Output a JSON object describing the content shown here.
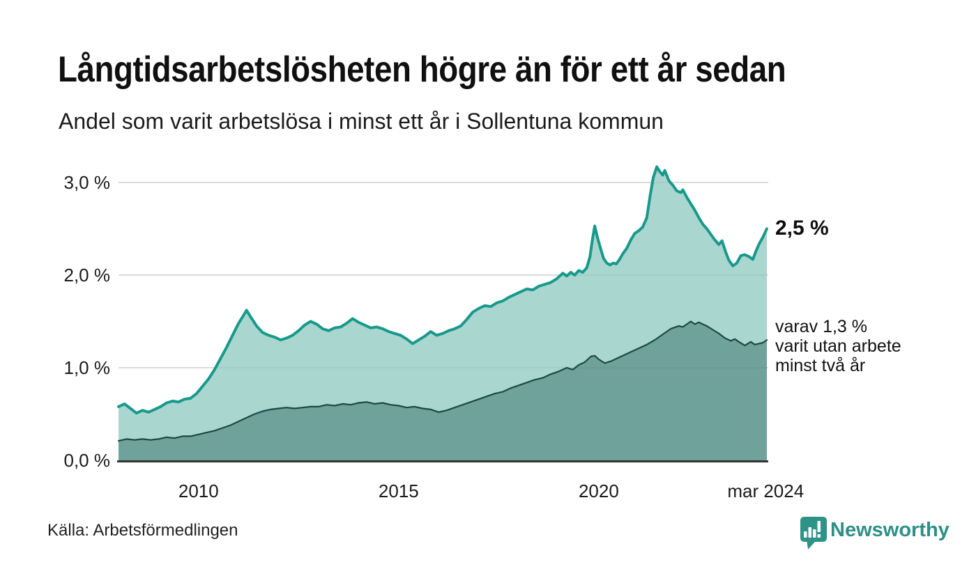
{
  "header": {
    "title": "Långtidsarbetslösheten högre än för ett år sedan",
    "subtitle": "Andel som varit arbetslösa i minst ett år i Sollentuna kommun"
  },
  "chart_data": {
    "type": "area",
    "unit": "%",
    "x_range": [
      2008.0,
      2024.2
    ],
    "ylim": [
      0,
      3.17
    ],
    "grid": "horizontal",
    "y_ticks": [
      {
        "v": 0.0,
        "label": "0,0 %"
      },
      {
        "v": 1.0,
        "label": "1,0 %"
      },
      {
        "v": 2.0,
        "label": "2,0 %"
      },
      {
        "v": 3.0,
        "label": "3,0 %"
      }
    ],
    "x_ticks": [
      {
        "t": 2010,
        "label": "2010"
      },
      {
        "t": 2015,
        "label": "2015"
      },
      {
        "t": 2020,
        "label": "2020"
      },
      {
        "t": 2024.17,
        "label": "mar 2024"
      }
    ],
    "colors": {
      "line_total": "#18998b",
      "fill_total": "#a9d6cf",
      "line_two_year": "#1d4843",
      "fill_two_year": "#6fa29b",
      "grid": "#d9d9d9",
      "baseline": "#333333",
      "brand": "#2e8f86"
    },
    "series": [
      {
        "name": "andel arbetslösa minst ett år",
        "end_value": 2.5,
        "points": [
          [
            2008.0,
            0.58
          ],
          [
            2008.15,
            0.61
          ],
          [
            2008.3,
            0.56
          ],
          [
            2008.45,
            0.51
          ],
          [
            2008.6,
            0.54
          ],
          [
            2008.75,
            0.52
          ],
          [
            2008.9,
            0.55
          ],
          [
            2009.05,
            0.58
          ],
          [
            2009.2,
            0.62
          ],
          [
            2009.35,
            0.64
          ],
          [
            2009.5,
            0.63
          ],
          [
            2009.65,
            0.66
          ],
          [
            2009.8,
            0.67
          ],
          [
            2009.95,
            0.72
          ],
          [
            2010.1,
            0.8
          ],
          [
            2010.25,
            0.88
          ],
          [
            2010.4,
            0.98
          ],
          [
            2010.55,
            1.1
          ],
          [
            2010.7,
            1.22
          ],
          [
            2010.85,
            1.35
          ],
          [
            2011.0,
            1.48
          ],
          [
            2011.1,
            1.55
          ],
          [
            2011.2,
            1.62
          ],
          [
            2011.3,
            1.55
          ],
          [
            2011.45,
            1.45
          ],
          [
            2011.6,
            1.38
          ],
          [
            2011.75,
            1.35
          ],
          [
            2011.9,
            1.33
          ],
          [
            2012.05,
            1.3
          ],
          [
            2012.2,
            1.32
          ],
          [
            2012.35,
            1.35
          ],
          [
            2012.5,
            1.4
          ],
          [
            2012.65,
            1.46
          ],
          [
            2012.8,
            1.5
          ],
          [
            2012.95,
            1.47
          ],
          [
            2013.1,
            1.42
          ],
          [
            2013.25,
            1.4
          ],
          [
            2013.4,
            1.43
          ],
          [
            2013.55,
            1.44
          ],
          [
            2013.7,
            1.48
          ],
          [
            2013.85,
            1.53
          ],
          [
            2014.0,
            1.49
          ],
          [
            2014.15,
            1.46
          ],
          [
            2014.3,
            1.43
          ],
          [
            2014.45,
            1.44
          ],
          [
            2014.6,
            1.42
          ],
          [
            2014.75,
            1.39
          ],
          [
            2014.9,
            1.37
          ],
          [
            2015.05,
            1.35
          ],
          [
            2015.2,
            1.31
          ],
          [
            2015.35,
            1.26
          ],
          [
            2015.5,
            1.3
          ],
          [
            2015.65,
            1.34
          ],
          [
            2015.8,
            1.39
          ],
          [
            2015.95,
            1.35
          ],
          [
            2016.1,
            1.37
          ],
          [
            2016.25,
            1.4
          ],
          [
            2016.4,
            1.42
          ],
          [
            2016.55,
            1.45
          ],
          [
            2016.7,
            1.52
          ],
          [
            2016.85,
            1.6
          ],
          [
            2017.0,
            1.64
          ],
          [
            2017.15,
            1.67
          ],
          [
            2017.3,
            1.66
          ],
          [
            2017.45,
            1.7
          ],
          [
            2017.6,
            1.72
          ],
          [
            2017.75,
            1.76
          ],
          [
            2017.9,
            1.79
          ],
          [
            2018.05,
            1.82
          ],
          [
            2018.2,
            1.85
          ],
          [
            2018.35,
            1.84
          ],
          [
            2018.5,
            1.88
          ],
          [
            2018.65,
            1.9
          ],
          [
            2018.8,
            1.92
          ],
          [
            2018.95,
            1.96
          ],
          [
            2019.1,
            2.02
          ],
          [
            2019.2,
            1.99
          ],
          [
            2019.3,
            2.03
          ],
          [
            2019.4,
            2.0
          ],
          [
            2019.5,
            2.05
          ],
          [
            2019.6,
            2.03
          ],
          [
            2019.7,
            2.08
          ],
          [
            2019.78,
            2.2
          ],
          [
            2019.84,
            2.38
          ],
          [
            2019.9,
            2.53
          ],
          [
            2019.97,
            2.4
          ],
          [
            2020.05,
            2.28
          ],
          [
            2020.12,
            2.18
          ],
          [
            2020.2,
            2.13
          ],
          [
            2020.28,
            2.11
          ],
          [
            2020.36,
            2.13
          ],
          [
            2020.44,
            2.12
          ],
          [
            2020.52,
            2.17
          ],
          [
            2020.6,
            2.23
          ],
          [
            2020.7,
            2.29
          ],
          [
            2020.8,
            2.38
          ],
          [
            2020.9,
            2.45
          ],
          [
            2021.0,
            2.48
          ],
          [
            2021.1,
            2.52
          ],
          [
            2021.2,
            2.62
          ],
          [
            2021.28,
            2.85
          ],
          [
            2021.36,
            3.05
          ],
          [
            2021.45,
            3.17
          ],
          [
            2021.52,
            3.12
          ],
          [
            2021.6,
            3.08
          ],
          [
            2021.65,
            3.13
          ],
          [
            2021.75,
            3.02
          ],
          [
            2021.85,
            2.97
          ],
          [
            2021.95,
            2.91
          ],
          [
            2022.05,
            2.89
          ],
          [
            2022.1,
            2.92
          ],
          [
            2022.2,
            2.84
          ],
          [
            2022.3,
            2.77
          ],
          [
            2022.4,
            2.7
          ],
          [
            2022.5,
            2.62
          ],
          [
            2022.6,
            2.55
          ],
          [
            2022.7,
            2.5
          ],
          [
            2022.8,
            2.44
          ],
          [
            2022.9,
            2.38
          ],
          [
            2023.0,
            2.33
          ],
          [
            2023.08,
            2.37
          ],
          [
            2023.17,
            2.25
          ],
          [
            2023.25,
            2.16
          ],
          [
            2023.35,
            2.1
          ],
          [
            2023.45,
            2.13
          ],
          [
            2023.55,
            2.21
          ],
          [
            2023.65,
            2.22
          ],
          [
            2023.75,
            2.2
          ],
          [
            2023.85,
            2.17
          ],
          [
            2023.92,
            2.25
          ],
          [
            2024.0,
            2.33
          ],
          [
            2024.1,
            2.41
          ],
          [
            2024.2,
            2.5
          ]
        ]
      },
      {
        "name": "varav utan arbete minst två år",
        "end_value": 1.3,
        "points": [
          [
            2008.0,
            0.21
          ],
          [
            2008.2,
            0.23
          ],
          [
            2008.4,
            0.22
          ],
          [
            2008.6,
            0.23
          ],
          [
            2008.8,
            0.22
          ],
          [
            2009.0,
            0.23
          ],
          [
            2009.2,
            0.25
          ],
          [
            2009.4,
            0.24
          ],
          [
            2009.6,
            0.26
          ],
          [
            2009.8,
            0.26
          ],
          [
            2010.0,
            0.28
          ],
          [
            2010.2,
            0.3
          ],
          [
            2010.4,
            0.32
          ],
          [
            2010.6,
            0.35
          ],
          [
            2010.8,
            0.38
          ],
          [
            2011.0,
            0.42
          ],
          [
            2011.2,
            0.46
          ],
          [
            2011.4,
            0.5
          ],
          [
            2011.6,
            0.53
          ],
          [
            2011.8,
            0.55
          ],
          [
            2012.0,
            0.56
          ],
          [
            2012.2,
            0.57
          ],
          [
            2012.4,
            0.56
          ],
          [
            2012.6,
            0.57
          ],
          [
            2012.8,
            0.58
          ],
          [
            2013.0,
            0.58
          ],
          [
            2013.2,
            0.6
          ],
          [
            2013.4,
            0.59
          ],
          [
            2013.6,
            0.61
          ],
          [
            2013.8,
            0.6
          ],
          [
            2014.0,
            0.62
          ],
          [
            2014.2,
            0.63
          ],
          [
            2014.4,
            0.61
          ],
          [
            2014.6,
            0.62
          ],
          [
            2014.8,
            0.6
          ],
          [
            2015.0,
            0.59
          ],
          [
            2015.2,
            0.57
          ],
          [
            2015.4,
            0.58
          ],
          [
            2015.6,
            0.56
          ],
          [
            2015.8,
            0.55
          ],
          [
            2016.0,
            0.52
          ],
          [
            2016.2,
            0.54
          ],
          [
            2016.4,
            0.57
          ],
          [
            2016.6,
            0.6
          ],
          [
            2016.8,
            0.63
          ],
          [
            2017.0,
            0.66
          ],
          [
            2017.2,
            0.69
          ],
          [
            2017.4,
            0.72
          ],
          [
            2017.6,
            0.74
          ],
          [
            2017.8,
            0.78
          ],
          [
            2018.0,
            0.81
          ],
          [
            2018.2,
            0.84
          ],
          [
            2018.4,
            0.87
          ],
          [
            2018.6,
            0.89
          ],
          [
            2018.8,
            0.93
          ],
          [
            2019.0,
            0.96
          ],
          [
            2019.2,
            1.0
          ],
          [
            2019.35,
            0.98
          ],
          [
            2019.5,
            1.03
          ],
          [
            2019.65,
            1.06
          ],
          [
            2019.8,
            1.12
          ],
          [
            2019.9,
            1.13
          ],
          [
            2020.0,
            1.09
          ],
          [
            2020.15,
            1.05
          ],
          [
            2020.3,
            1.07
          ],
          [
            2020.45,
            1.1
          ],
          [
            2020.6,
            1.13
          ],
          [
            2020.8,
            1.17
          ],
          [
            2021.0,
            1.21
          ],
          [
            2021.2,
            1.25
          ],
          [
            2021.4,
            1.3
          ],
          [
            2021.6,
            1.36
          ],
          [
            2021.8,
            1.42
          ],
          [
            2022.0,
            1.45
          ],
          [
            2022.1,
            1.44
          ],
          [
            2022.2,
            1.47
          ],
          [
            2022.3,
            1.5
          ],
          [
            2022.4,
            1.47
          ],
          [
            2022.5,
            1.49
          ],
          [
            2022.6,
            1.47
          ],
          [
            2022.7,
            1.45
          ],
          [
            2022.85,
            1.41
          ],
          [
            2023.0,
            1.37
          ],
          [
            2023.15,
            1.32
          ],
          [
            2023.3,
            1.29
          ],
          [
            2023.4,
            1.31
          ],
          [
            2023.5,
            1.28
          ],
          [
            2023.65,
            1.24
          ],
          [
            2023.8,
            1.28
          ],
          [
            2023.9,
            1.25
          ],
          [
            2024.0,
            1.26
          ],
          [
            2024.1,
            1.27
          ],
          [
            2024.2,
            1.3
          ]
        ]
      }
    ]
  },
  "annotations": {
    "end_value_label": "2,5 %",
    "secondary_label_lines": [
      "varav 1,3 %",
      "varit utan arbete",
      "minst två år"
    ]
  },
  "footer": {
    "source": "Källa: Arbetsförmedlingen",
    "brand": "Newsworthy"
  }
}
